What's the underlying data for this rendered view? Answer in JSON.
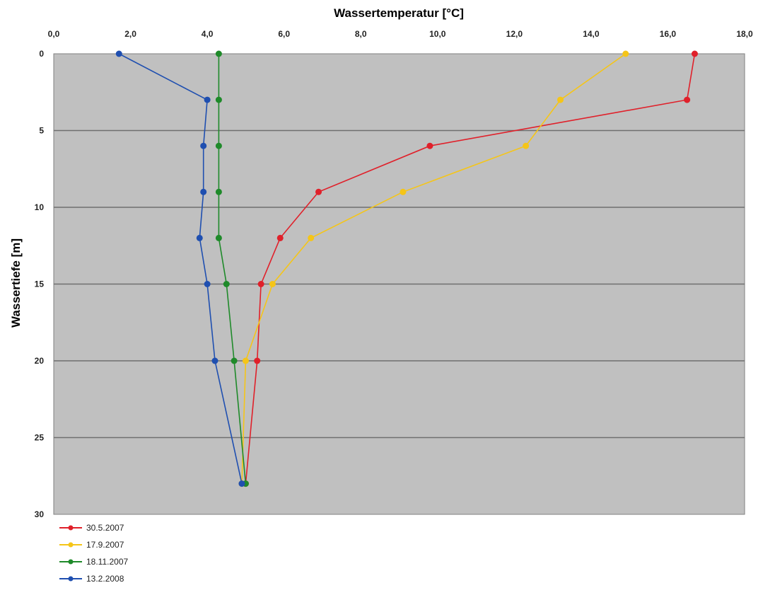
{
  "chart_data": {
    "type": "line",
    "title": "",
    "xlabel": "Wassertemperatur [°C]",
    "ylabel": "Wassertiefe [m]",
    "xlim": [
      0,
      18
    ],
    "ylim": [
      0,
      30
    ],
    "y_inverted": true,
    "x_axis_position": "top",
    "xticks": [
      "0,0",
      "2,0",
      "4,0",
      "6,0",
      "8,0",
      "10,0",
      "12,0",
      "14,0",
      "16,0",
      "18,0"
    ],
    "yticks": [
      "0",
      "5",
      "10",
      "15",
      "20",
      "25",
      "30"
    ],
    "grid": "horizontal",
    "plot_background": "#c0c0c0",
    "legend_position": "bottom-left",
    "series": [
      {
        "name": "30.5.2007",
        "color": "#e0202a",
        "points": [
          [
            16.7,
            0
          ],
          [
            16.5,
            3
          ],
          [
            9.8,
            6
          ],
          [
            6.9,
            9
          ],
          [
            5.9,
            12
          ],
          [
            5.4,
            15
          ],
          [
            5.3,
            20
          ],
          [
            5.0,
            28
          ]
        ]
      },
      {
        "name": "17.9.2007",
        "color": "#f5c518",
        "points": [
          [
            14.9,
            0
          ],
          [
            13.2,
            3
          ],
          [
            12.3,
            6
          ],
          [
            9.1,
            9
          ],
          [
            6.7,
            12
          ],
          [
            5.7,
            15
          ],
          [
            5.0,
            20
          ],
          [
            4.9,
            28
          ]
        ]
      },
      {
        "name": "18.11.2007",
        "color": "#1f8a2a",
        "points": [
          [
            4.3,
            0
          ],
          [
            4.3,
            3
          ],
          [
            4.3,
            6
          ],
          [
            4.3,
            9
          ],
          [
            4.3,
            12
          ],
          [
            4.5,
            15
          ],
          [
            4.7,
            20
          ],
          [
            5.0,
            28
          ]
        ]
      },
      {
        "name": "13.2.2008",
        "color": "#1f4fb0",
        "points": [
          [
            1.7,
            0
          ],
          [
            4.0,
            3
          ],
          [
            3.9,
            6
          ],
          [
            3.9,
            9
          ],
          [
            3.8,
            12
          ],
          [
            4.0,
            15
          ],
          [
            4.2,
            20
          ],
          [
            4.9,
            28
          ]
        ]
      }
    ]
  }
}
